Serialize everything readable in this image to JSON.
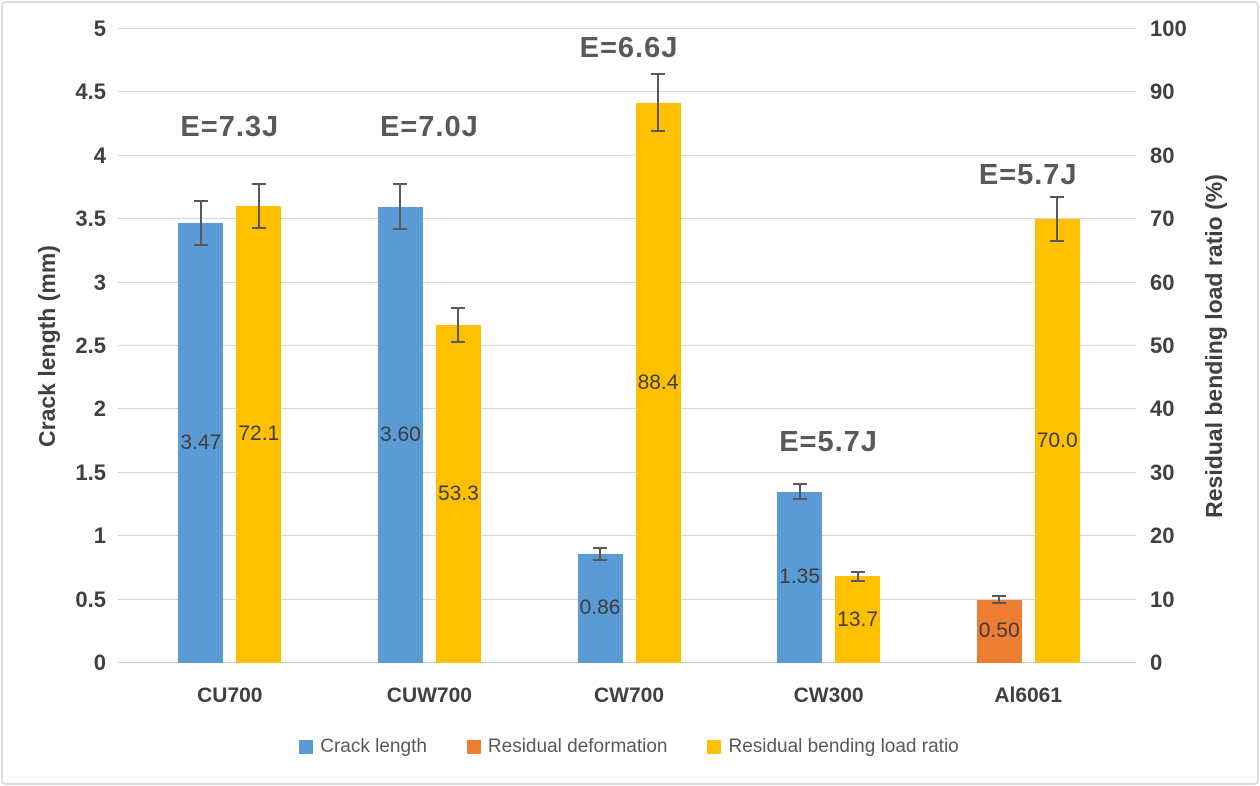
{
  "chart_data": {
    "type": "bar",
    "title": "",
    "categories": [
      "CU700",
      "CUW700",
      "CW700",
      "CW300",
      "Al6061"
    ],
    "axes": {
      "left": {
        "title": "Crack length (mm)",
        "min": 0,
        "max": 5,
        "step": 0.5,
        "tick_labels": [
          "0",
          "0.5",
          "1",
          "1.5",
          "2",
          "2.5",
          "3",
          "3.5",
          "4",
          "4.5",
          "5"
        ]
      },
      "right": {
        "title": "Residual bending load ratio (%)",
        "min": 0,
        "max": 100,
        "step": 10,
        "tick_labels": [
          "0",
          "10",
          "20",
          "30",
          "40",
          "50",
          "60",
          "70",
          "80",
          "90",
          "100"
        ]
      }
    },
    "grid": true,
    "legend_position": "bottom",
    "series": [
      {
        "name": "Crack length",
        "axis": "left",
        "color": "#5B9BD5",
        "values": [
          3.47,
          3.6,
          0.86,
          1.35,
          null
        ],
        "labels": [
          "3.47",
          "3.60",
          "0.86",
          "1.35",
          null
        ],
        "errors": [
          0.17,
          0.18,
          0.05,
          0.06,
          null
        ]
      },
      {
        "name": "Residual deformation",
        "axis": "left",
        "color": "#ED7D31",
        "values": [
          null,
          null,
          null,
          null,
          0.5
        ],
        "labels": [
          null,
          null,
          null,
          null,
          "0.50"
        ],
        "errors": [
          null,
          null,
          null,
          null,
          0.03
        ]
      },
      {
        "name": "Residual bending load ratio",
        "axis": "right",
        "color": "#FFC000",
        "values": [
          72.1,
          53.3,
          88.4,
          13.7,
          70.0
        ],
        "labels": [
          "72.1",
          "53.3",
          "88.4",
          "13.7",
          "70.0"
        ],
        "errors": [
          3.5,
          2.7,
          4.5,
          0.7,
          3.5
        ]
      }
    ],
    "annotations": [
      {
        "text": "E=7.3J",
        "category_index": 0,
        "left_axis_value": 4.23
      },
      {
        "text": "E=7.0J",
        "category_index": 1,
        "left_axis_value": 4.23
      },
      {
        "text": "E=6.6J",
        "category_index": 2,
        "left_axis_value": 4.85
      },
      {
        "text": "E=5.7J",
        "category_index": 3,
        "left_axis_value": 1.74
      },
      {
        "text": "E=5.7J",
        "category_index": 4,
        "left_axis_value": 3.85
      }
    ],
    "error_bar_color": "#595959",
    "gridline_color": "#d6d6d6",
    "baseline_color": "#c6c6c6",
    "text_color": "#404040"
  }
}
